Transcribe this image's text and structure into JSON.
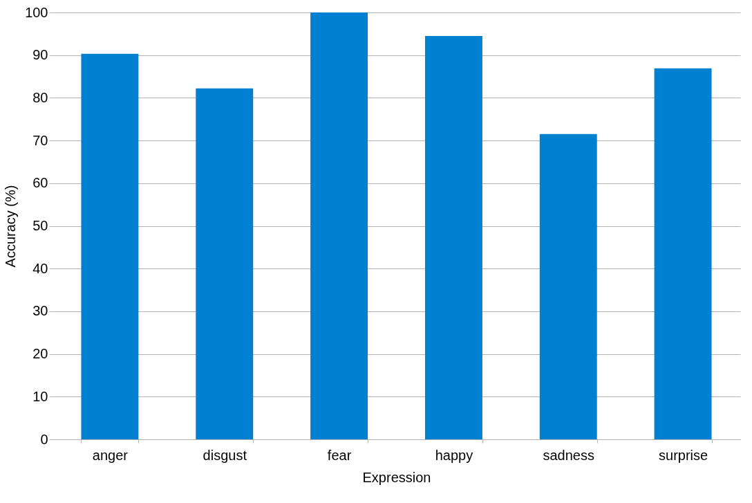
{
  "chart_data": {
    "type": "bar",
    "xlabel": "Expression",
    "ylabel": "Accuracy (%)",
    "categories": [
      "anger",
      "disgust",
      "fear",
      "happy",
      "sadness",
      "surprise"
    ],
    "values": [
      90.3,
      82.2,
      100,
      94.5,
      71.5,
      86.9
    ],
    "color": "#0080d0",
    "ylim": [
      0,
      100
    ],
    "yticks": [
      0,
      10,
      20,
      30,
      40,
      50,
      60,
      70,
      80,
      90,
      100
    ],
    "grid": "y"
  }
}
